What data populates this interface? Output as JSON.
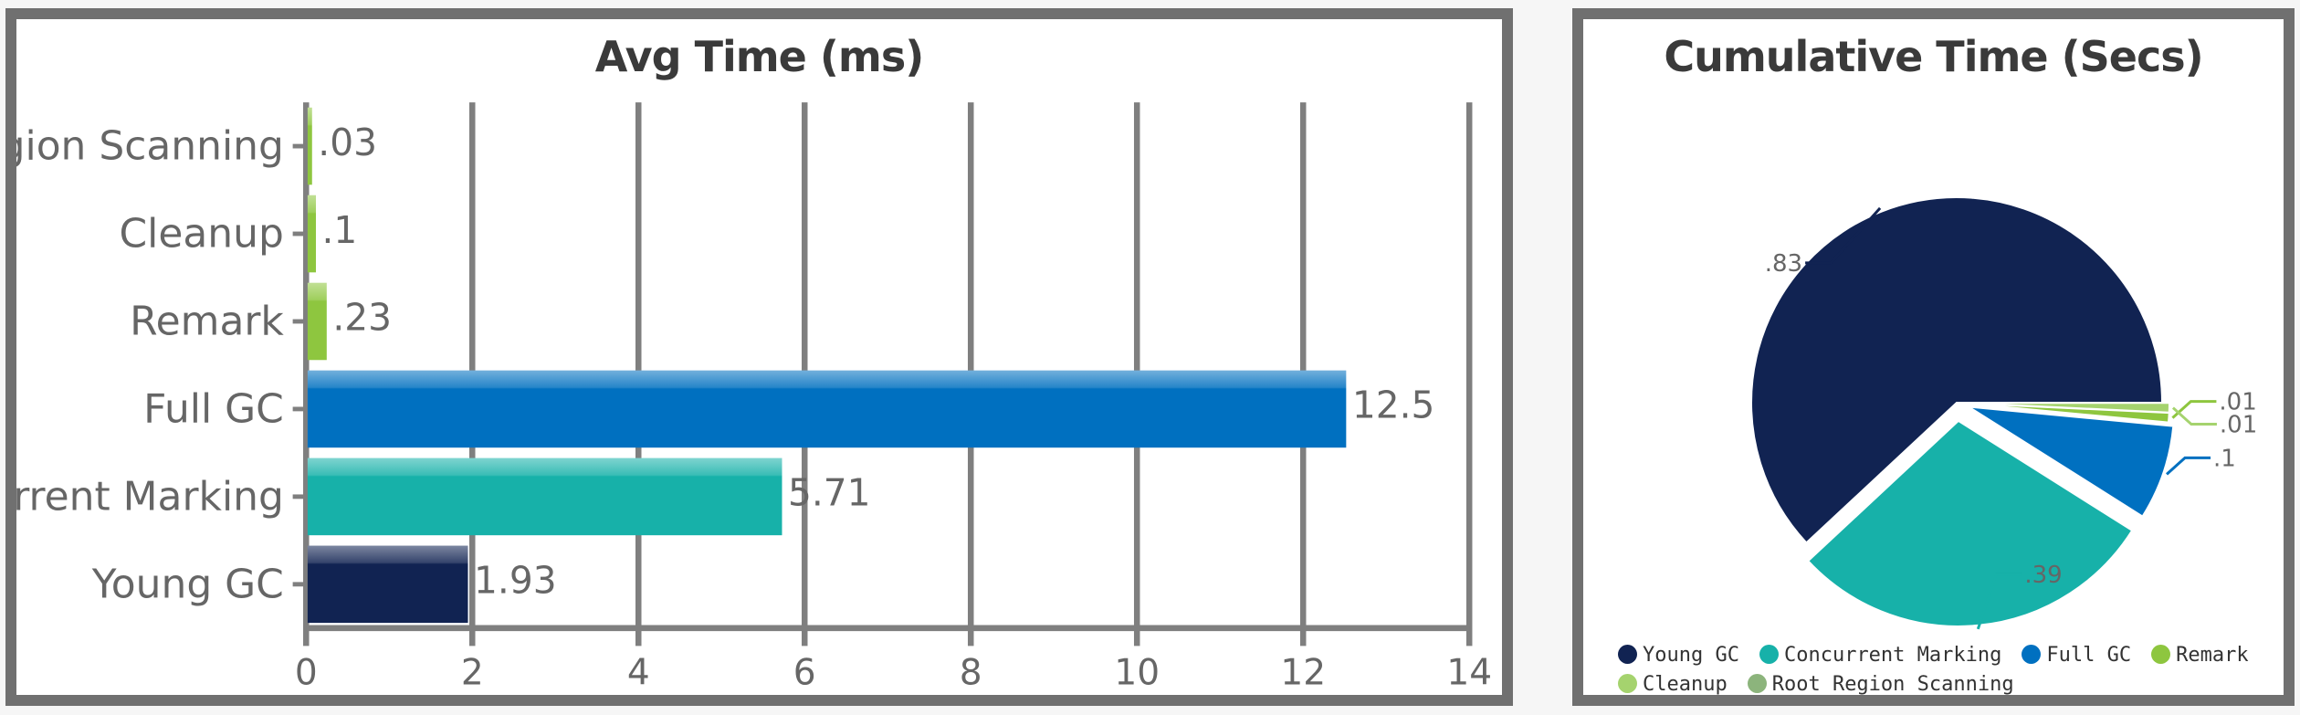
{
  "chart_data": [
    {
      "type": "bar",
      "orientation": "horizontal",
      "title": "Avg Time (ms)",
      "xlabel": "",
      "ylabel": "",
      "xlim": [
        0,
        14
      ],
      "xticks": [
        0,
        2,
        4,
        6,
        8,
        10,
        12,
        14
      ],
      "grid": true,
      "categories": [
        "Root Region Scanning",
        "Cleanup",
        "Remark",
        "Full GC",
        "Concurrent Marking",
        "Young GC"
      ],
      "values": [
        0.03,
        0.1,
        0.23,
        12.5,
        5.71,
        1.93
      ],
      "data_labels": [
        ".03",
        ".1",
        ".23",
        "12.5",
        "5.71",
        "1.93"
      ],
      "colors": [
        "#8ec63f",
        "#8ec63f",
        "#8ec63f",
        "#0070c0",
        "#17b1a9",
        "#112352"
      ]
    },
    {
      "type": "pie",
      "title": "Cumulative Time (Secs)",
      "legend_position": "bottom",
      "categories": [
        "Young GC",
        "Concurrent Marking",
        "Full GC",
        "Remark",
        "Cleanup",
        "Root Region Scanning"
      ],
      "values": [
        0.83,
        0.39,
        0.1,
        0.01,
        0.01,
        0
      ],
      "data_labels": [
        ".83",
        ".39",
        ".1",
        ".01",
        ".01",
        ""
      ],
      "colors": [
        "#112352",
        "#17b1a9",
        "#0070c0",
        "#8ec63f",
        "#a5d36e",
        "#8cb47c"
      ]
    }
  ]
}
